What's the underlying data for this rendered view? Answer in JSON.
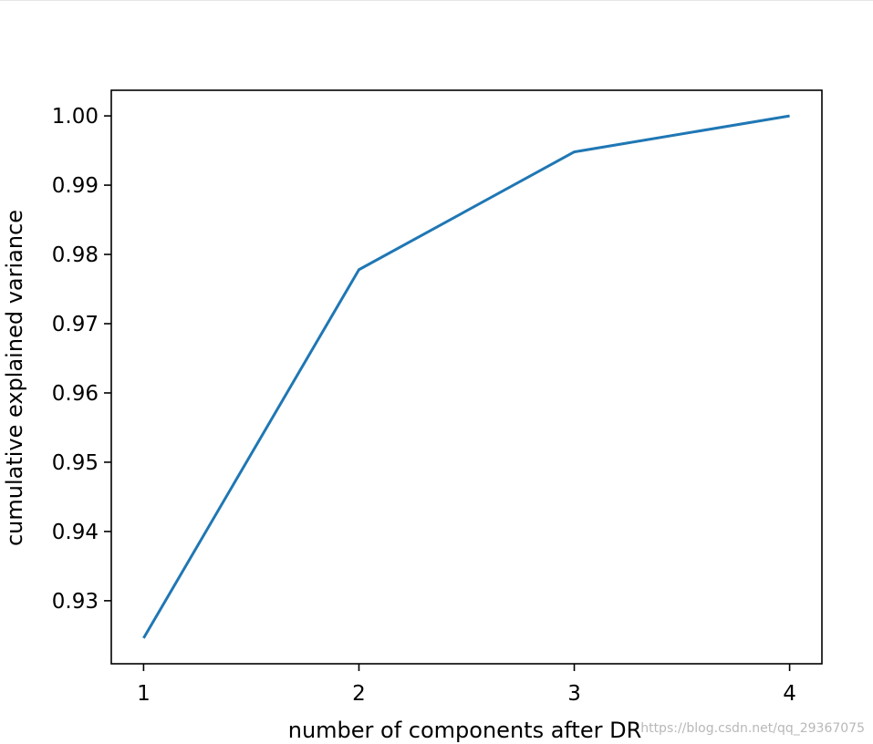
{
  "chart_data": {
    "type": "line",
    "xlabel": "number of components after DR",
    "ylabel": "cumulative explained variance",
    "x": [
      1,
      2,
      3,
      4
    ],
    "y": [
      0.9246,
      0.9778,
      0.9948,
      1.0
    ],
    "xlim": [
      0.85,
      4.15
    ],
    "ylim": [
      0.9209,
      1.0037
    ],
    "xticks": [
      1,
      2,
      3,
      4
    ],
    "xtick_labels": [
      "1",
      "2",
      "3",
      "4"
    ],
    "yticks": [
      0.93,
      0.94,
      0.95,
      0.96,
      0.97,
      0.98,
      0.99,
      1.0
    ],
    "ytick_labels": [
      "0.93",
      "0.94",
      "0.95",
      "0.96",
      "0.97",
      "0.98",
      "0.99",
      "1.00"
    ],
    "grid": false,
    "line_color": "#1f77b4"
  },
  "watermark": "https://blog.csdn.net/qq_29367075"
}
